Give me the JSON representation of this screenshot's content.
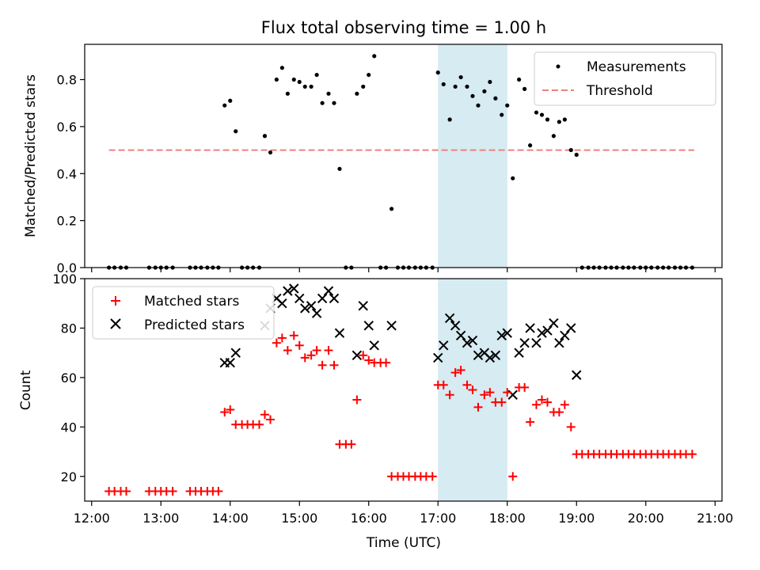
{
  "title": "Flux total observing time = 1.00 h",
  "colors": {
    "measurement": "#000000",
    "threshold": "#f08080",
    "matched": "#ff0000",
    "predicted": "#000000",
    "highlight": "#add8e6"
  },
  "chart_data": [
    {
      "type": "scatter",
      "ylabel": "Matched/Predicted stars",
      "ylim": [
        0,
        0.95
      ],
      "yticks": [
        "0.0",
        "0.2",
        "0.4",
        "0.6",
        "0.8"
      ],
      "ytick_values": [
        0,
        0.2,
        0.4,
        0.6,
        0.8
      ],
      "xlim_hours": [
        11.9,
        21.1
      ],
      "highlight_hours": [
        17.0,
        18.0
      ],
      "threshold": {
        "name": "Threshold",
        "y": 0.5,
        "x_hours": [
          12.25,
          20.7
        ]
      },
      "legend": {
        "position": "top-right",
        "entries": [
          "Measurements",
          "Threshold"
        ]
      },
      "series": [
        {
          "name": "Measurements",
          "x_hours": [
            12.25,
            12.33,
            12.42,
            12.5,
            12.83,
            12.92,
            13.0,
            13.08,
            13.17,
            13.42,
            13.5,
            13.58,
            13.67,
            13.75,
            13.83,
            13.92,
            14.0,
            14.08,
            14.17,
            14.25,
            14.33,
            14.42,
            14.5,
            14.58,
            14.67,
            14.75,
            14.83,
            14.92,
            15.0,
            15.08,
            15.17,
            15.25,
            15.33,
            15.42,
            15.5,
            15.58,
            15.67,
            15.75,
            15.83,
            15.92,
            16.0,
            16.08,
            16.17,
            16.25,
            16.33,
            16.42,
            16.5,
            16.58,
            16.67,
            16.75,
            16.83,
            16.92,
            17.0,
            17.08,
            17.17,
            17.25,
            17.33,
            17.42,
            17.5,
            17.58,
            17.67,
            17.75,
            17.83,
            17.92,
            18.0,
            18.08,
            18.17,
            18.25,
            18.33,
            18.42,
            18.5,
            18.58,
            18.67,
            18.75,
            18.83,
            18.92,
            19.0,
            19.08,
            19.17,
            19.25,
            19.33,
            19.42,
            19.5,
            19.58,
            19.67,
            19.75,
            19.83,
            19.92,
            20.0,
            20.08,
            20.17,
            20.25,
            20.33,
            20.42,
            20.5,
            20.58,
            20.67
          ],
          "y": [
            0,
            0,
            0,
            0,
            0,
            0,
            0,
            0,
            0,
            0,
            0,
            0,
            0,
            0,
            0,
            0.69,
            0.71,
            0.58,
            0,
            0,
            0,
            0,
            0.56,
            0.49,
            0.8,
            0.85,
            0.74,
            0.8,
            0.79,
            0.77,
            0.77,
            0.82,
            0.7,
            0.74,
            0.7,
            0.42,
            0,
            0,
            0.74,
            0.77,
            0.82,
            0.9,
            0,
            0,
            0.25,
            0,
            0,
            0,
            0,
            0,
            0,
            0,
            0.83,
            0.78,
            0.63,
            0.77,
            0.81,
            0.77,
            0.73,
            0.69,
            0.75,
            0.79,
            0.72,
            0.65,
            0.69,
            0.38,
            0.8,
            0.76,
            0.52,
            0.66,
            0.65,
            0.63,
            0.56,
            0.62,
            0.63,
            0.5,
            0.48,
            0,
            0,
            0,
            0,
            0,
            0,
            0,
            0,
            0,
            0,
            0,
            0,
            0,
            0,
            0,
            0,
            0,
            0,
            0,
            0
          ]
        }
      ]
    },
    {
      "type": "scatter",
      "ylabel": "Count",
      "xlabel": "Time (UTC)",
      "ylim": [
        10,
        100
      ],
      "yticks": [
        "20",
        "40",
        "60",
        "80",
        "100"
      ],
      "ytick_values": [
        20,
        40,
        60,
        80,
        100
      ],
      "xlim_hours": [
        11.9,
        21.1
      ],
      "xticks": [
        "12:00",
        "13:00",
        "14:00",
        "15:00",
        "16:00",
        "17:00",
        "18:00",
        "19:00",
        "20:00",
        "21:00"
      ],
      "xtick_hours": [
        12,
        13,
        14,
        15,
        16,
        17,
        18,
        19,
        20,
        21
      ],
      "highlight_hours": [
        17.0,
        18.0
      ],
      "legend": {
        "position": "top-left",
        "entries": [
          "Matched stars",
          "Predicted stars"
        ]
      },
      "series": [
        {
          "name": "Matched stars",
          "x_hours": [
            12.25,
            12.33,
            12.42,
            12.5,
            12.83,
            12.92,
            13.0,
            13.08,
            13.17,
            13.42,
            13.5,
            13.58,
            13.67,
            13.75,
            13.83,
            13.92,
            14.0,
            14.08,
            14.17,
            14.25,
            14.33,
            14.42,
            14.5,
            14.58,
            14.67,
            14.75,
            14.83,
            14.92,
            15.0,
            15.08,
            15.17,
            15.25,
            15.33,
            15.42,
            15.5,
            15.58,
            15.67,
            15.75,
            15.83,
            15.92,
            16.0,
            16.08,
            16.17,
            16.25,
            16.33,
            16.42,
            16.5,
            16.58,
            16.67,
            16.75,
            16.83,
            16.92,
            17.0,
            17.08,
            17.17,
            17.25,
            17.33,
            17.42,
            17.5,
            17.58,
            17.67,
            17.75,
            17.83,
            17.92,
            18.0,
            18.08,
            18.17,
            18.25,
            18.33,
            18.42,
            18.5,
            18.58,
            18.67,
            18.75,
            18.83,
            18.92,
            19.0,
            19.08,
            19.17,
            19.25,
            19.33,
            19.42,
            19.5,
            19.58,
            19.67,
            19.75,
            19.83,
            19.92,
            20.0,
            20.08,
            20.17,
            20.25,
            20.33,
            20.42,
            20.5,
            20.58,
            20.67
          ],
          "y": [
            14,
            14,
            14,
            14,
            14,
            14,
            14,
            14,
            14,
            14,
            14,
            14,
            14,
            14,
            14,
            46,
            47,
            41,
            41,
            41,
            41,
            41,
            45,
            43,
            74,
            76,
            71,
            77,
            73,
            68,
            69,
            71,
            65,
            71,
            65,
            33,
            33,
            33,
            51,
            69,
            67,
            66,
            66,
            66,
            20,
            20,
            20,
            20,
            20,
            20,
            20,
            20,
            57,
            57,
            53,
            62,
            63,
            57,
            55,
            48,
            53,
            54,
            50,
            50,
            54,
            20,
            56,
            56,
            42,
            49,
            51,
            50,
            46,
            46,
            49,
            40,
            29,
            29,
            29,
            29,
            29,
            29,
            29,
            29,
            29,
            29,
            29,
            29,
            29,
            29,
            29,
            29,
            29,
            29,
            29,
            29,
            29
          ]
        },
        {
          "name": "Predicted stars",
          "x_hours": [
            13.92,
            14.0,
            14.08,
            14.5,
            14.58,
            14.67,
            14.75,
            14.83,
            14.92,
            15.0,
            15.08,
            15.17,
            15.25,
            15.33,
            15.42,
            15.5,
            15.58,
            15.83,
            15.92,
            16.0,
            16.08,
            16.33,
            17.0,
            17.08,
            17.17,
            17.25,
            17.33,
            17.42,
            17.5,
            17.58,
            17.67,
            17.75,
            17.83,
            17.92,
            18.0,
            18.08,
            18.17,
            18.25,
            18.33,
            18.42,
            18.5,
            18.58,
            18.67,
            18.75,
            18.83,
            18.92,
            19.0
          ],
          "y": [
            66,
            66,
            70,
            81,
            88,
            92,
            90,
            95,
            96,
            92,
            88,
            89,
            86,
            92,
            95,
            92,
            78,
            69,
            89,
            81,
            73,
            81,
            68,
            73,
            84,
            81,
            77,
            74,
            75,
            69,
            70,
            68,
            69,
            77,
            78,
            53,
            70,
            74,
            80,
            74,
            78,
            79,
            82,
            74,
            77,
            80,
            61
          ]
        }
      ]
    }
  ]
}
